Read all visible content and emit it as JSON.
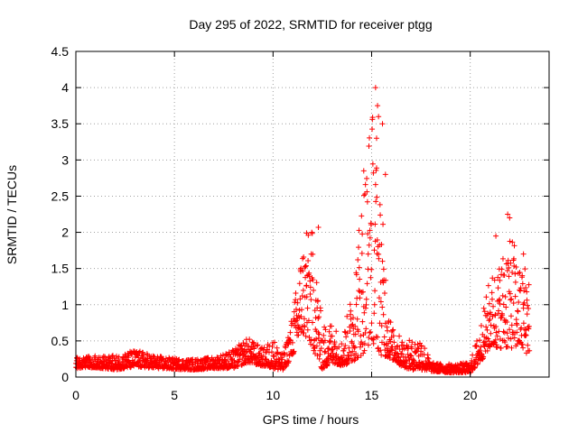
{
  "chart_data": {
    "type": "scatter",
    "title": "Day 295 of 2022, SRMTID for receiver ptgg",
    "xlabel": "GPS time / hours",
    "ylabel": "SRMTID / TECUs",
    "xlim": [
      0,
      24
    ],
    "ylim": [
      0,
      4.5
    ],
    "xticks": [
      0,
      5,
      10,
      15,
      20
    ],
    "yticks": [
      0,
      0.5,
      1,
      1.5,
      2,
      2.5,
      3,
      3.5,
      4,
      4.5
    ],
    "xtick_labels": [
      "0",
      "5",
      "10",
      "15",
      "20"
    ],
    "ytick_labels": [
      "0",
      "0.5",
      "1",
      "1.5",
      "2",
      "2.5",
      "3",
      "3.5",
      "4",
      "4.5"
    ],
    "grid": true,
    "marker": "+",
    "series": [
      {
        "name": "SRMTID",
        "color": "#ff0000",
        "envelope": [
          {
            "x": 0.0,
            "low": 0.12,
            "high": 0.28
          },
          {
            "x": 1.0,
            "low": 0.13,
            "high": 0.3
          },
          {
            "x": 2.0,
            "low": 0.1,
            "high": 0.3
          },
          {
            "x": 3.0,
            "low": 0.14,
            "high": 0.38
          },
          {
            "x": 4.0,
            "low": 0.12,
            "high": 0.3
          },
          {
            "x": 5.0,
            "low": 0.11,
            "high": 0.26
          },
          {
            "x": 6.0,
            "low": 0.1,
            "high": 0.25
          },
          {
            "x": 7.0,
            "low": 0.12,
            "high": 0.28
          },
          {
            "x": 8.0,
            "low": 0.12,
            "high": 0.38
          },
          {
            "x": 8.7,
            "low": 0.2,
            "high": 0.55
          },
          {
            "x": 9.5,
            "low": 0.15,
            "high": 0.4
          },
          {
            "x": 10.0,
            "low": 0.12,
            "high": 0.55
          },
          {
            "x": 10.5,
            "low": 0.08,
            "high": 0.3
          },
          {
            "x": 11.0,
            "low": 0.3,
            "high": 0.9
          },
          {
            "x": 11.5,
            "low": 0.6,
            "high": 1.9
          },
          {
            "x": 12.0,
            "low": 0.4,
            "high": 2.05
          },
          {
            "x": 12.5,
            "low": 0.1,
            "high": 0.7
          },
          {
            "x": 13.0,
            "low": 0.2,
            "high": 0.8
          },
          {
            "x": 13.5,
            "low": 0.15,
            "high": 0.5
          },
          {
            "x": 14.0,
            "low": 0.2,
            "high": 1.2
          },
          {
            "x": 14.5,
            "low": 0.3,
            "high": 2.6
          },
          {
            "x": 15.0,
            "low": 0.5,
            "high": 3.9
          },
          {
            "x": 15.5,
            "low": 0.3,
            "high": 2.4
          },
          {
            "x": 16.0,
            "low": 0.25,
            "high": 0.7
          },
          {
            "x": 16.5,
            "low": 0.15,
            "high": 0.55
          },
          {
            "x": 17.0,
            "low": 0.1,
            "high": 0.5
          },
          {
            "x": 17.5,
            "low": 0.1,
            "high": 0.6
          },
          {
            "x": 18.0,
            "low": 0.08,
            "high": 0.2
          },
          {
            "x": 19.0,
            "low": 0.06,
            "high": 0.18
          },
          {
            "x": 20.0,
            "low": 0.06,
            "high": 0.2
          },
          {
            "x": 20.5,
            "low": 0.2,
            "high": 0.7
          },
          {
            "x": 21.0,
            "low": 0.4,
            "high": 1.4
          },
          {
            "x": 21.5,
            "low": 0.4,
            "high": 1.6
          },
          {
            "x": 22.0,
            "low": 0.4,
            "high": 2.2
          },
          {
            "x": 22.5,
            "low": 0.4,
            "high": 1.5
          },
          {
            "x": 23.0,
            "low": 0.3,
            "high": 1.7
          }
        ],
        "outliers": [
          {
            "x": 15.2,
            "y": 4.0
          },
          {
            "x": 15.3,
            "y": 3.75
          },
          {
            "x": 15.35,
            "y": 3.6
          },
          {
            "x": 15.25,
            "y": 3.3
          },
          {
            "x": 15.55,
            "y": 3.5
          },
          {
            "x": 14.6,
            "y": 2.85
          },
          {
            "x": 15.7,
            "y": 2.8
          },
          {
            "x": 12.3,
            "y": 2.07
          },
          {
            "x": 11.7,
            "y": 1.99
          },
          {
            "x": 21.9,
            "y": 2.25
          },
          {
            "x": 21.3,
            "y": 1.95
          },
          {
            "x": 22.7,
            "y": 1.7
          }
        ]
      }
    ]
  }
}
